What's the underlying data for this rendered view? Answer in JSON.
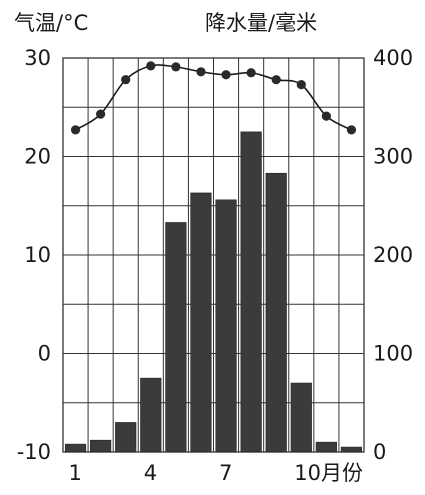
{
  "chart_data": {
    "type": "bar+line",
    "left_axis_title": "气温/°C",
    "right_axis_title": "降水量/毫米",
    "categories": [
      1,
      2,
      3,
      4,
      5,
      6,
      7,
      8,
      9,
      10,
      11,
      12
    ],
    "x_tick_labels": [
      {
        "month": 1,
        "label": "1"
      },
      {
        "month": 4,
        "label": "4"
      },
      {
        "month": 7,
        "label": "7"
      },
      {
        "month": 10,
        "label": "10月份"
      }
    ],
    "temperature": {
      "unit": "°C",
      "ylim": [
        -10,
        30
      ],
      "ticks": [
        "30",
        "20",
        "10",
        "0",
        "-10"
      ],
      "values": [
        22.7,
        24.3,
        27.8,
        29.2,
        29.1,
        28.6,
        28.3,
        28.5,
        27.8,
        27.3,
        24.1,
        22.7
      ]
    },
    "precipitation": {
      "unit": "毫米",
      "ylim": [
        0,
        400
      ],
      "ticks": [
        "400",
        "300",
        "200",
        "100",
        "0"
      ],
      "values": [
        8,
        12,
        30,
        75,
        233,
        263,
        256,
        325,
        283,
        70,
        10,
        5
      ]
    },
    "grid": true,
    "colors": {
      "bar": "#3b3b3b",
      "line": "#1a1a1a",
      "marker": "#2a2a2a",
      "grid": "#333333"
    }
  }
}
